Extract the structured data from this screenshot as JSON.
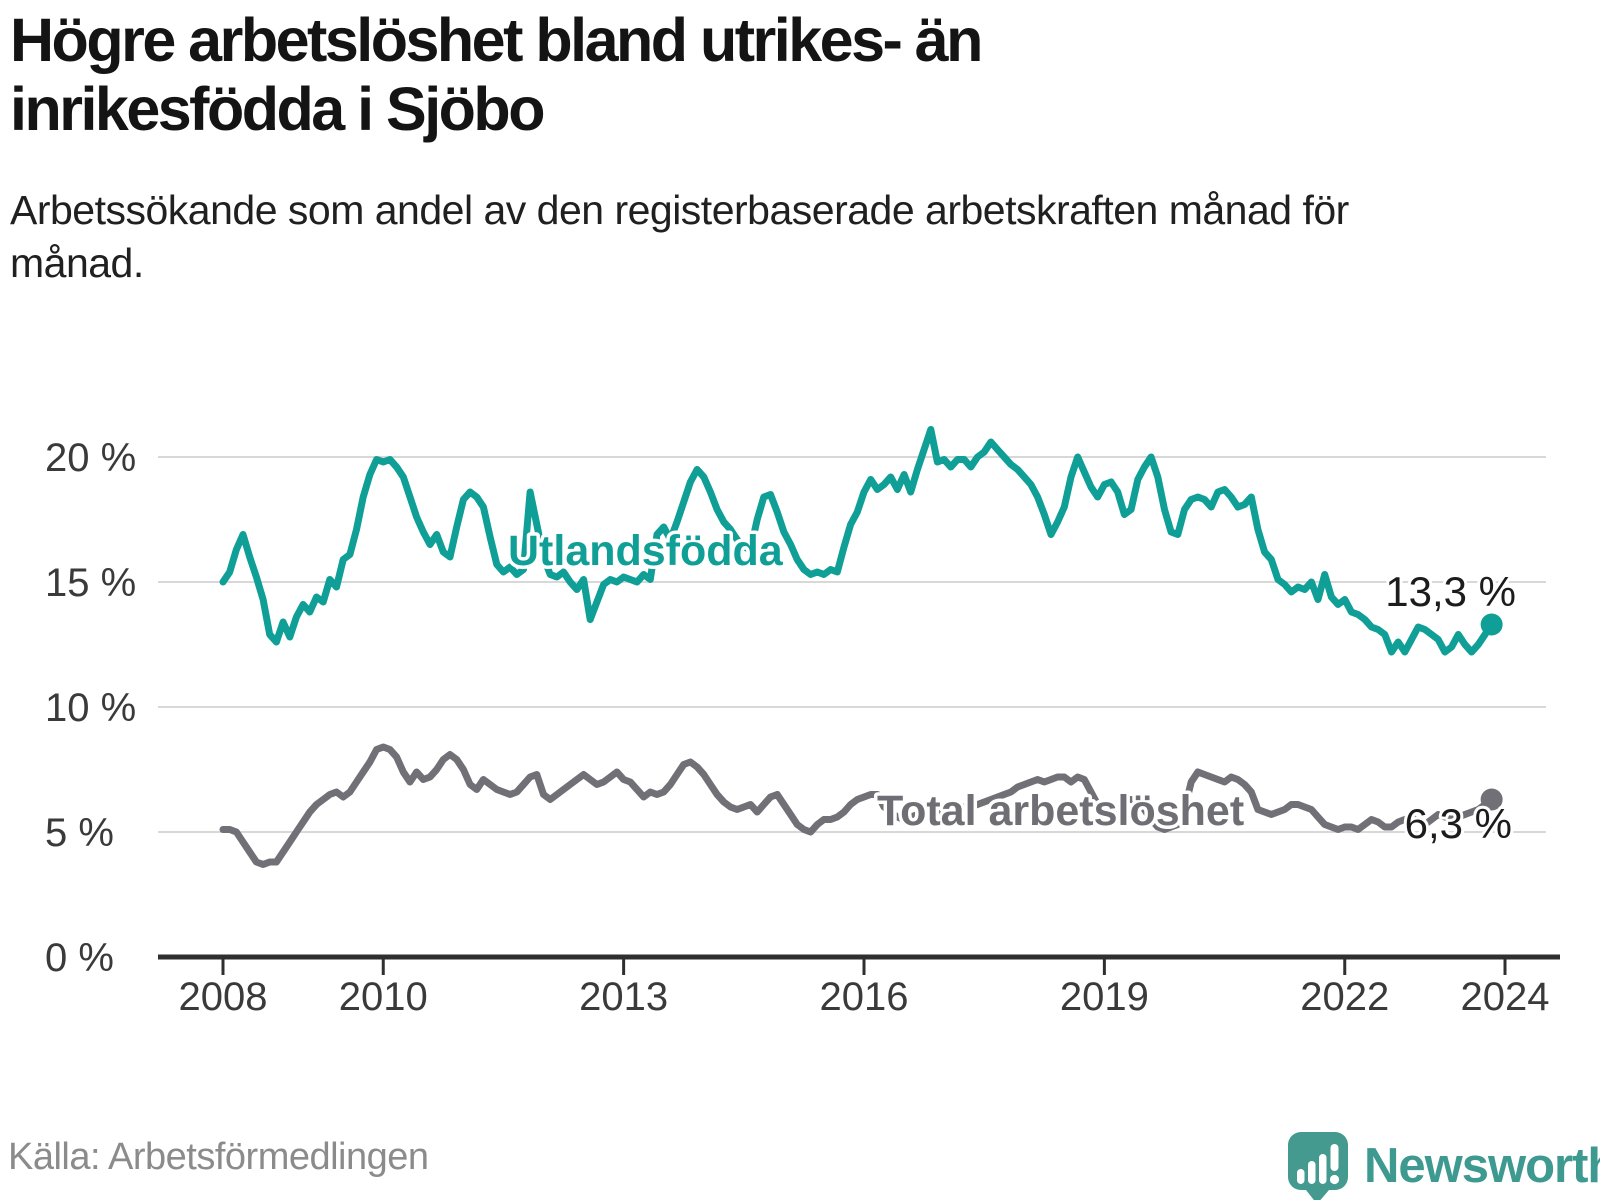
{
  "header": {
    "title": "Högre arbetslöshet bland utrikes- än inrikesfödda i Sjöbo",
    "subtitle": "Arbetssökande som andel av den registerbaserade arbetskraften månad för månad."
  },
  "footer": {
    "source": "Källa: Arbetsförmedlingen",
    "brand": "Newsworthy"
  },
  "colors": {
    "accent_teal": "#0f9f96",
    "line_gray": "#707076",
    "gray_label": "#6e6e74",
    "value_label": "#1c1c1c",
    "axis": "#2f2f2f",
    "gridline": "#d8d8d8",
    "brand_teal": "#459a90"
  },
  "chart_data": {
    "type": "line",
    "unit": "%",
    "title": "Högre arbetslöshet bland utrikes- än inrikesfödda i Sjöbo",
    "x_start": "2008-01",
    "x_end": "2023-11",
    "frequency": "monthly",
    "grid": "horizontal",
    "legend_position": "inline",
    "ylim": [
      0,
      21.5
    ],
    "x_ticks": [
      {
        "label": "2008",
        "year": 2008
      },
      {
        "label": "2010",
        "year": 2010
      },
      {
        "label": "2013",
        "year": 2013
      },
      {
        "label": "2016",
        "year": 2016
      },
      {
        "label": "2019",
        "year": 2019
      },
      {
        "label": "2022",
        "year": 2022
      },
      {
        "label": "2024",
        "year": 2024
      }
    ],
    "y_ticks": [
      {
        "label": "0 %",
        "value": 0
      },
      {
        "label": "5 %",
        "value": 5
      },
      {
        "label": "10 %",
        "value": 10
      },
      {
        "label": "15 %",
        "value": 15
      },
      {
        "label": "20 %",
        "value": 20
      }
    ],
    "series": [
      {
        "name": "Total arbetslöshet",
        "label": "Total arbetslöshet",
        "color": "#707076",
        "label_color": "#6e6e74",
        "end_label": "6,3 %",
        "end_value": 6.3,
        "values": [
          5.1,
          5.1,
          5.0,
          4.6,
          4.2,
          3.8,
          3.7,
          3.8,
          3.8,
          4.2,
          4.6,
          5.0,
          5.4,
          5.8,
          6.1,
          6.3,
          6.5,
          6.6,
          6.4,
          6.6,
          7.0,
          7.4,
          7.8,
          8.3,
          8.4,
          8.3,
          8.0,
          7.4,
          7.0,
          7.4,
          7.1,
          7.2,
          7.5,
          7.9,
          8.1,
          7.9,
          7.5,
          6.9,
          6.7,
          7.1,
          6.9,
          6.7,
          6.6,
          6.5,
          6.6,
          6.9,
          7.2,
          7.3,
          6.5,
          6.3,
          6.5,
          6.7,
          6.9,
          7.1,
          7.3,
          7.1,
          6.9,
          7.0,
          7.2,
          7.4,
          7.1,
          7.0,
          6.7,
          6.4,
          6.6,
          6.5,
          6.6,
          6.9,
          7.3,
          7.7,
          7.8,
          7.6,
          7.3,
          6.9,
          6.5,
          6.2,
          6.0,
          5.9,
          6.0,
          6.1,
          5.8,
          6.1,
          6.4,
          6.5,
          6.1,
          5.7,
          5.3,
          5.1,
          5.0,
          5.3,
          5.5,
          5.5,
          5.6,
          5.8,
          6.1,
          6.3,
          6.4,
          6.5,
          6.5,
          6.0,
          5.8,
          5.6,
          5.5,
          5.6,
          5.7,
          5.8,
          5.8,
          5.7,
          5.8,
          5.8,
          5.9,
          6.0,
          6.0,
          6.1,
          6.2,
          6.3,
          6.4,
          6.5,
          6.6,
          6.8,
          6.9,
          7.0,
          7.1,
          7.0,
          7.1,
          7.2,
          7.2,
          7.0,
          7.2,
          7.1,
          6.6,
          6.1,
          5.9,
          5.8,
          5.9,
          6.3,
          6.3,
          6.2,
          5.9,
          5.5,
          5.2,
          5.1,
          5.2,
          5.3,
          5.9,
          7.0,
          7.4,
          7.3,
          7.2,
          7.1,
          7.0,
          7.2,
          7.1,
          6.9,
          6.6,
          5.9,
          5.8,
          5.7,
          5.8,
          5.9,
          6.1,
          6.1,
          6.0,
          5.9,
          5.6,
          5.3,
          5.2,
          5.1,
          5.2,
          5.2,
          5.1,
          5.3,
          5.5,
          5.4,
          5.2,
          5.2,
          5.4,
          5.5,
          5.6,
          5.4,
          5.3,
          5.5,
          5.7,
          5.6,
          5.5,
          5.6,
          5.7,
          5.8,
          5.9,
          6.1,
          6.3
        ]
      },
      {
        "name": "Utlandsfödda",
        "label": "Utlandsfödda",
        "color": "#0f9f96",
        "label_color": "#0f9f96",
        "end_label": "13,3 %",
        "end_value": 13.3,
        "values": [
          15.0,
          15.4,
          16.3,
          16.9,
          16.0,
          15.2,
          14.3,
          12.9,
          12.6,
          13.4,
          12.8,
          13.6,
          14.1,
          13.8,
          14.4,
          14.2,
          15.1,
          14.8,
          15.9,
          16.1,
          17.1,
          18.4,
          19.3,
          19.9,
          19.8,
          19.9,
          19.6,
          19.2,
          18.4,
          17.6,
          17.0,
          16.5,
          16.9,
          16.2,
          16.0,
          17.2,
          18.3,
          18.6,
          18.4,
          18.0,
          16.8,
          15.7,
          15.4,
          15.6,
          15.3,
          15.5,
          18.6,
          17.3,
          16.0,
          15.3,
          15.2,
          15.4,
          15.0,
          14.7,
          15.1,
          13.5,
          14.2,
          14.9,
          15.1,
          15.0,
          15.2,
          15.1,
          15.0,
          15.3,
          15.1,
          16.9,
          17.2,
          16.7,
          17.4,
          18.2,
          19.0,
          19.5,
          19.2,
          18.6,
          17.9,
          17.4,
          17.1,
          16.7,
          16.4,
          16.3,
          17.5,
          18.4,
          18.5,
          17.8,
          17.0,
          16.5,
          15.9,
          15.5,
          15.3,
          15.4,
          15.3,
          15.5,
          15.4,
          16.4,
          17.3,
          17.8,
          18.6,
          19.1,
          18.7,
          18.9,
          19.2,
          18.7,
          19.3,
          18.6,
          19.5,
          20.3,
          21.1,
          19.8,
          19.9,
          19.6,
          19.9,
          19.9,
          19.6,
          20.0,
          20.2,
          20.6,
          20.3,
          20.0,
          19.7,
          19.5,
          19.2,
          18.9,
          18.4,
          17.7,
          16.9,
          17.4,
          18.0,
          19.2,
          20.0,
          19.4,
          18.8,
          18.4,
          18.9,
          19.0,
          18.6,
          17.7,
          17.9,
          19.1,
          19.6,
          20.0,
          19.2,
          17.9,
          17.0,
          16.9,
          17.9,
          18.3,
          18.4,
          18.3,
          18.0,
          18.6,
          18.7,
          18.4,
          18.0,
          18.1,
          18.4,
          17.1,
          16.2,
          15.9,
          15.1,
          14.9,
          14.6,
          14.8,
          14.7,
          15.0,
          14.3,
          15.3,
          14.4,
          14.1,
          14.3,
          13.8,
          13.7,
          13.5,
          13.2,
          13.1,
          12.9,
          12.2,
          12.6,
          12.2,
          12.7,
          13.2,
          13.1,
          12.9,
          12.7,
          12.2,
          12.4,
          12.9,
          12.5,
          12.2,
          12.5,
          12.9,
          13.3
        ]
      }
    ]
  }
}
